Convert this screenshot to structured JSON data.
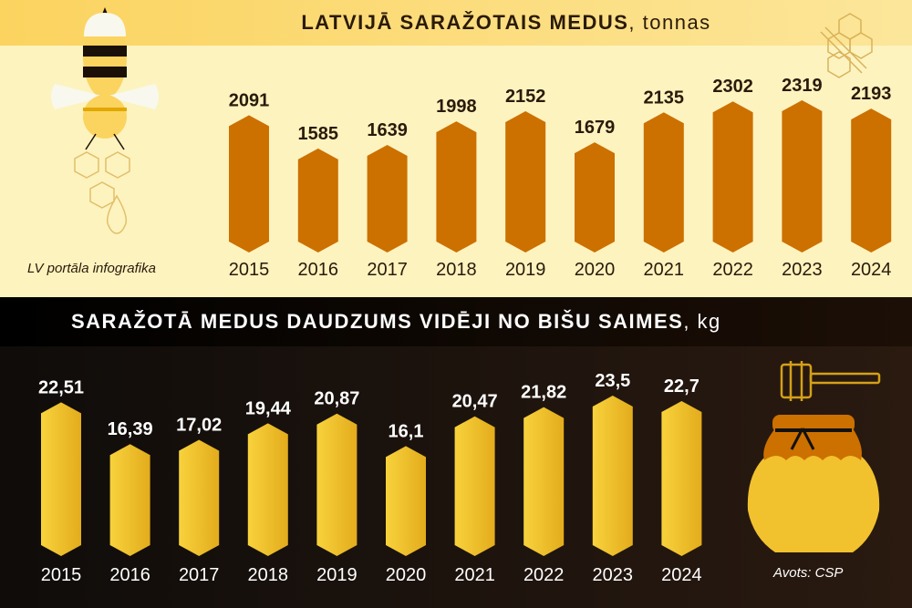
{
  "credit": "LV portāla infografika",
  "source": "Avots: CSP",
  "chart_data": [
    {
      "type": "bar",
      "title": "LATVIJĀ SARAŽOTAIS MEDUS",
      "unit": ", tonnas",
      "categories": [
        "2015",
        "2016",
        "2017",
        "2018",
        "2019",
        "2020",
        "2021",
        "2022",
        "2023",
        "2024"
      ],
      "values": [
        2091,
        1585,
        1639,
        1998,
        2152,
        1679,
        2135,
        2302,
        2319,
        2193
      ],
      "value_labels": [
        "2091",
        "1585",
        "1639",
        "1998",
        "2152",
        "1679",
        "2135",
        "2302",
        "2319",
        "2193"
      ],
      "bar_color": "#cc7000",
      "grid": false
    },
    {
      "type": "bar",
      "title": "SARAŽOTĀ MEDUS DAUDZUMS VIDĒJI NO BIŠU SAIMES",
      "unit": ", kg",
      "categories": [
        "2015",
        "2016",
        "2017",
        "2018",
        "2019",
        "2020",
        "2021",
        "2022",
        "2023",
        "2024"
      ],
      "values": [
        22.51,
        16.39,
        17.02,
        19.44,
        20.87,
        16.1,
        20.47,
        21.82,
        23.5,
        22.7
      ],
      "value_labels": [
        "22,51",
        "16,39",
        "17,02",
        "19,44",
        "20,87",
        "16,1",
        "20,47",
        "21,82",
        "23,5",
        "22,7"
      ],
      "bar_color": "#f5c935",
      "grid": false
    }
  ]
}
